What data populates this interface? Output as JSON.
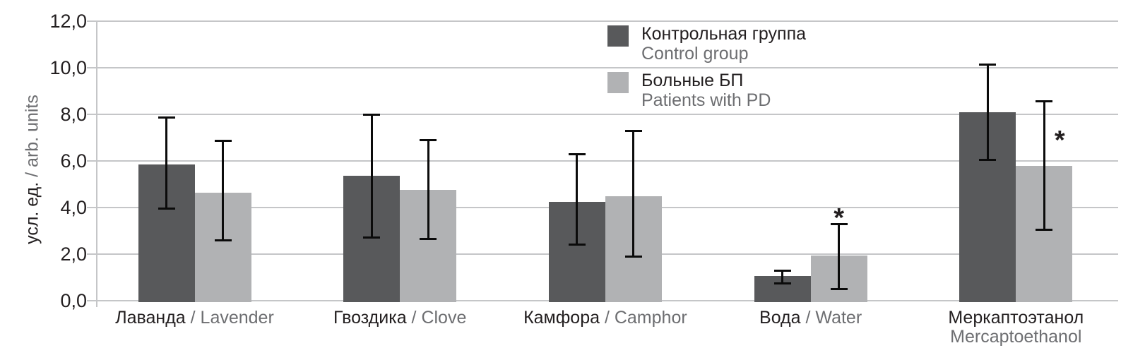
{
  "figure": {
    "background": "#ffffff"
  },
  "chart_data": {
    "type": "bar",
    "title": "",
    "ylabel_ru": "усл. ед. ",
    "ylabel_en": "/ arb. units",
    "y_axis": {
      "min": 0,
      "max": 12,
      "tick_step": 2,
      "tick_values": [
        0,
        2,
        4,
        6,
        8,
        10,
        12
      ],
      "tick_labels": [
        "0,0",
        "2,0",
        "4,0",
        "6,0",
        "8,0",
        "10,0",
        "12,0"
      ],
      "decimal_separator": ","
    },
    "grid": true,
    "separator": " / ",
    "categories": [
      {
        "ru": "Лаванда",
        "en": "Lavender",
        "two_line": false
      },
      {
        "ru": "Гвоздика",
        "en": "Clove",
        "two_line": false
      },
      {
        "ru": "Камфора",
        "en": "Camphor",
        "two_line": false
      },
      {
        "ru": "Вода",
        "en": "Water",
        "two_line": false
      },
      {
        "ru": "Меркаптоэтанол",
        "en": "Mercaptoethanol",
        "two_line": true
      }
    ],
    "series": [
      {
        "name_ru": "Контрольная группа",
        "name_en": "Control group",
        "color": "#58595b",
        "values": [
          5.85,
          5.35,
          4.25,
          1.05,
          8.1
        ],
        "err_low": [
          3.95,
          2.7,
          2.4,
          0.75,
          6.05
        ],
        "err_high": [
          7.85,
          8.0,
          6.3,
          1.3,
          10.15
        ]
      },
      {
        "name_ru": "Больные БП",
        "name_en": "Patients with PD",
        "color": "#b1b2b4",
        "values": [
          4.65,
          4.75,
          4.5,
          1.95,
          5.8
        ],
        "err_low": [
          2.6,
          2.65,
          1.9,
          0.5,
          3.05
        ],
        "err_high": [
          6.85,
          6.9,
          7.3,
          3.3,
          8.55
        ]
      }
    ],
    "significance_markers": [
      {
        "symbol": "*",
        "series": 1,
        "category": 3,
        "placement": "above-whisker"
      },
      {
        "symbol": "*",
        "series": 1,
        "category": 4,
        "placement": "right-of-whisker",
        "at_value": 7.05
      }
    ],
    "legend_position": "top-center-inside",
    "colors": {
      "gridline": "#c5c6c8",
      "axis": "#c5c6c8",
      "error_bar": "#0b0b0b",
      "text_primary": "#231f20",
      "text_secondary": "#6d6e71"
    }
  }
}
